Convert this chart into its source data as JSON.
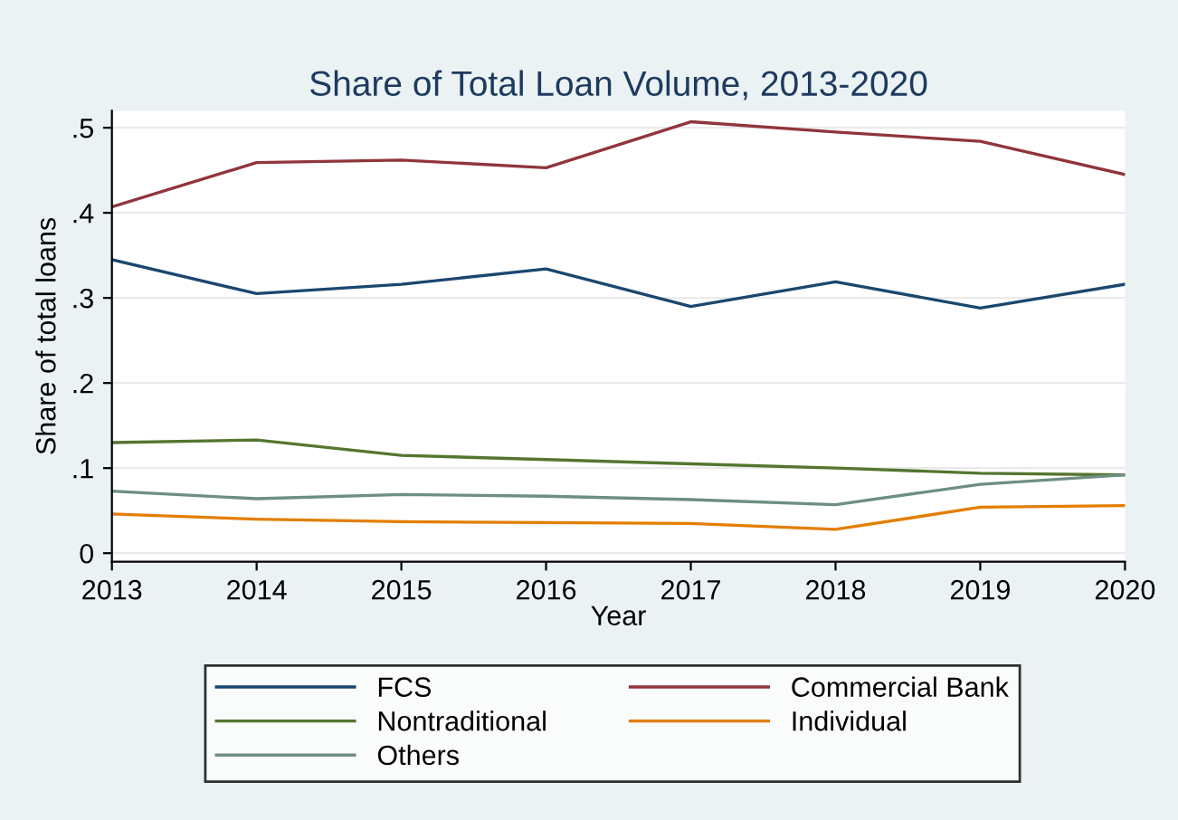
{
  "chart_data": {
    "type": "line",
    "title": "Share of Total Loan Volume, 2013-2020",
    "xlabel": "Year",
    "ylabel": "Share of total loans",
    "x": [
      2013,
      2014,
      2015,
      2016,
      2017,
      2018,
      2019,
      2020
    ],
    "series": [
      {
        "name": "FCS",
        "color": "#1a476f",
        "values": [
          0.345,
          0.305,
          0.316,
          0.334,
          0.29,
          0.319,
          0.288,
          0.316
        ]
      },
      {
        "name": "Commercial Bank",
        "color": "#90353b",
        "values": [
          0.407,
          0.459,
          0.462,
          0.453,
          0.507,
          0.495,
          0.484,
          0.445
        ]
      },
      {
        "name": "Nontraditional",
        "color": "#55752f",
        "values": [
          0.13,
          0.133,
          0.115,
          0.11,
          0.105,
          0.1,
          0.094,
          0.092
        ]
      },
      {
        "name": "Individual",
        "color": "#e37e00",
        "values": [
          0.046,
          0.04,
          0.037,
          0.036,
          0.035,
          0.028,
          0.054,
          0.056
        ]
      },
      {
        "name": "Others",
        "color": "#6e8e84",
        "values": [
          0.073,
          0.064,
          0.069,
          0.067,
          0.063,
          0.057,
          0.081,
          0.092
        ]
      }
    ],
    "xlim": [
      2013,
      2020
    ],
    "xticks": [
      2013,
      2014,
      2015,
      2016,
      2017,
      2018,
      2019,
      2020
    ],
    "ylim": [
      -0.01,
      0.52
    ],
    "yticks": [
      0,
      {
        "value": 0.1,
        "label": ".1"
      },
      {
        "value": 0.2,
        "label": ".2"
      },
      {
        "value": 0.3,
        "label": ".3"
      },
      {
        "value": 0.4,
        "label": ".4"
      },
      {
        "value": 0.5,
        "label": ".5"
      }
    ],
    "grid": "y",
    "legend": "bottom",
    "marker": "none",
    "line_style": "solid"
  }
}
